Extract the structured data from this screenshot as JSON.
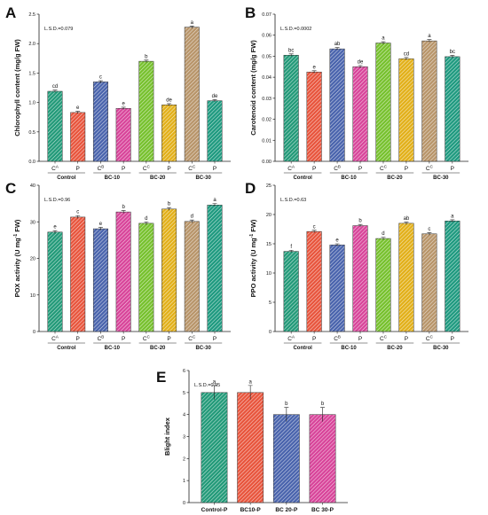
{
  "hatch_colors": {
    "green": "#239a79",
    "orange": "#e8553d",
    "blue": "#4a64ad",
    "pink": "#d8459a",
    "lime": "#77c12e",
    "yellow": "#e2b01a",
    "tan": "#b8956a",
    "teal": "#1f9a80"
  },
  "chart_data": [
    {
      "id": "A",
      "panel_label": "A",
      "type": "bar",
      "ylabel": "Chlorophyll content (mg/g FW)",
      "lsd": "L.S.D.=0.079",
      "ylim": [
        0,
        2.5
      ],
      "yticks": [
        "0.0",
        "0.5",
        "1.0",
        "1.5",
        "2.0",
        "2.5"
      ],
      "categories": [
        "C",
        "P",
        "C",
        "P",
        "C",
        "P",
        "C",
        "P"
      ],
      "category_superscripts": [
        "A",
        "",
        "B",
        "",
        "C",
        "",
        "C",
        ""
      ],
      "groups": [
        "Control",
        "BC-10",
        "BC-20",
        "BC-30"
      ],
      "values": [
        1.19,
        0.83,
        1.35,
        0.9,
        1.7,
        0.96,
        2.28,
        1.03
      ],
      "errors": [
        0.02,
        0.02,
        0.02,
        0.02,
        0.02,
        0.02,
        0.02,
        0.02
      ],
      "letters": [
        "cd",
        "e",
        "c",
        "e",
        "b",
        "de",
        "a",
        "de"
      ],
      "colors": [
        "green",
        "orange",
        "blue",
        "pink",
        "lime",
        "yellow",
        "tan",
        "teal"
      ]
    },
    {
      "id": "B",
      "panel_label": "B",
      "type": "bar",
      "ylabel": "Carotenoid content (mg/g FW)",
      "lsd": "L.S.D.=0.0002",
      "ylim": [
        0,
        0.07
      ],
      "yticks": [
        "0.00",
        "0.01",
        "0.02",
        "0.03",
        "0.04",
        "0.05",
        "0.06",
        "0.07"
      ],
      "categories": [
        "C",
        "P",
        "C",
        "P",
        "C",
        "P",
        "C",
        "P"
      ],
      "category_superscripts": [
        "A",
        "",
        "B",
        "",
        "C",
        "",
        "C",
        ""
      ],
      "groups": [
        "Control",
        "BC-10",
        "BC-20",
        "BC-30"
      ],
      "values": [
        0.0505,
        0.0425,
        0.0535,
        0.045,
        0.0563,
        0.0488,
        0.0573,
        0.0498
      ],
      "errors": [
        0.0006,
        0.0006,
        0.0006,
        0.0006,
        0.0006,
        0.0006,
        0.0006,
        0.0006
      ],
      "letters": [
        "bc",
        "e",
        "ab",
        "de",
        "a",
        "cd",
        "a",
        "bc"
      ],
      "colors": [
        "green",
        "orange",
        "blue",
        "pink",
        "lime",
        "yellow",
        "tan",
        "teal"
      ]
    },
    {
      "id": "C",
      "panel_label": "C",
      "type": "bar",
      "ylabel": "POX activity (U mg",
      "ylabel_sup": "-1",
      "ylabel_end": " FW)",
      "lsd": "L.S.D.=0.96",
      "ylim": [
        0,
        40
      ],
      "yticks": [
        "0",
        "10",
        "20",
        "30",
        "40"
      ],
      "categories": [
        "C",
        "P",
        "C",
        "P",
        "C",
        "P",
        "C",
        "P"
      ],
      "category_superscripts": [
        "A",
        "",
        "B",
        "",
        "C",
        "",
        "C",
        ""
      ],
      "groups": [
        "Control",
        "BC-10",
        "BC-20",
        "BC-30"
      ],
      "values": [
        27.2,
        31.3,
        28.1,
        32.7,
        29.6,
        33.5,
        30.1,
        34.6
      ],
      "errors": [
        0.4,
        0.4,
        0.4,
        0.4,
        0.4,
        0.4,
        0.4,
        0.4
      ],
      "letters": [
        "e",
        "c",
        "e",
        "b",
        "d",
        "b",
        "d",
        "a"
      ],
      "colors": [
        "green",
        "orange",
        "blue",
        "pink",
        "lime",
        "yellow",
        "tan",
        "teal"
      ]
    },
    {
      "id": "D",
      "panel_label": "D",
      "type": "bar",
      "ylabel": "PPO activity (U mg",
      "ylabel_sup": "-1",
      "ylabel_end": " FW)",
      "lsd": "L.S.D.=0.63",
      "ylim": [
        0,
        25
      ],
      "yticks": [
        "0",
        "5",
        "10",
        "15",
        "20",
        "25"
      ],
      "categories": [
        "C",
        "P",
        "C",
        "P",
        "C",
        "P",
        "C",
        "P"
      ],
      "category_superscripts": [
        "A",
        "",
        "B",
        "",
        "C",
        "",
        "C",
        ""
      ],
      "groups": [
        "Control",
        "BC-10",
        "BC-20",
        "BC-30"
      ],
      "values": [
        13.7,
        17.1,
        14.8,
        18.1,
        15.9,
        18.5,
        16.7,
        18.9
      ],
      "errors": [
        0.2,
        0.2,
        0.2,
        0.2,
        0.2,
        0.2,
        0.2,
        0.2
      ],
      "letters": [
        "f",
        "c",
        "e",
        "b",
        "d",
        "ab",
        "c",
        "a"
      ],
      "colors": [
        "green",
        "orange",
        "blue",
        "pink",
        "lime",
        "yellow",
        "tan",
        "teal"
      ]
    },
    {
      "id": "E",
      "panel_label": "E",
      "type": "bar",
      "ylabel": "Blight index",
      "lsd": "L.S.D.=0.95",
      "ylim": [
        0,
        6
      ],
      "yticks": [
        "0",
        "1",
        "2",
        "3",
        "4",
        "5",
        "6"
      ],
      "categories": [
        "Control-P",
        "BC10-P",
        "BC 20-P",
        "BC 30-P"
      ],
      "values": [
        5,
        5,
        4,
        4
      ],
      "errors": [
        0.32,
        0.32,
        0.32,
        0.32
      ],
      "letters": [
        "a",
        "a",
        "b",
        "b"
      ],
      "colors": [
        "green",
        "orange",
        "blue",
        "pink"
      ]
    }
  ]
}
